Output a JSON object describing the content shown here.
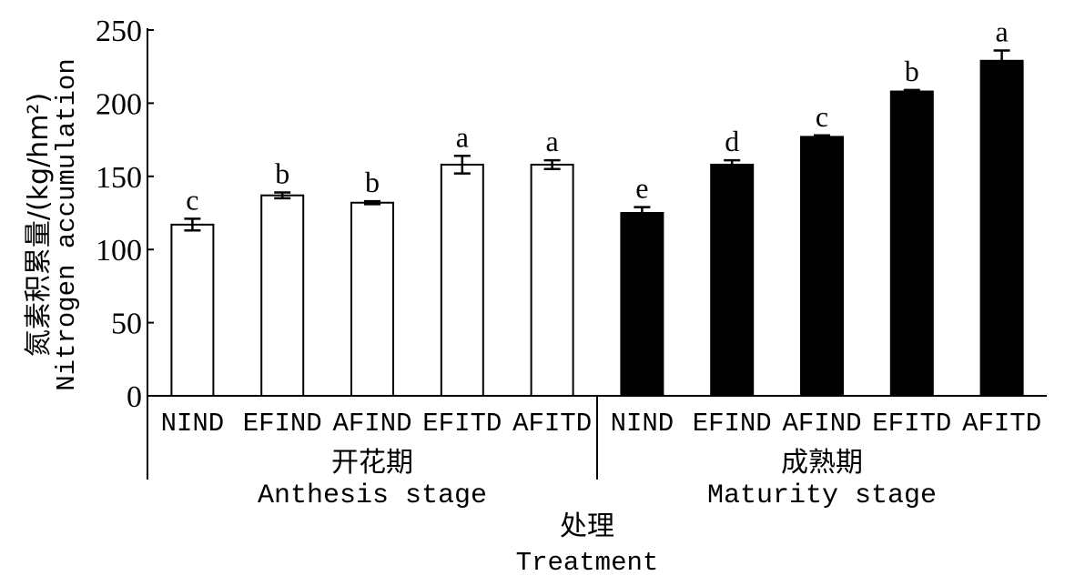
{
  "chart_data": {
    "type": "bar",
    "ylabel_cn": "氮素积累量/(kg/hm²)",
    "ylabel_en": "Nitrogen accumulation",
    "xlabel_cn": "处理",
    "xlabel_en": "Treatment",
    "ylim": [
      0,
      250
    ],
    "yticks": [
      "0",
      "50",
      "100",
      "150",
      "200",
      "250"
    ],
    "groups": [
      {
        "name_cn": "开花期",
        "name_en": "Anthesis stage",
        "fill": "#ffffff",
        "categories": [
          "NIND",
          "EFIND",
          "AFIND",
          "EFITD",
          "AFITD"
        ],
        "values": [
          117,
          137,
          132,
          158,
          158
        ],
        "errors": [
          4,
          2,
          1,
          6,
          3
        ],
        "labels": [
          "c",
          "b",
          "b",
          "a",
          "a"
        ]
      },
      {
        "name_cn": "成熟期",
        "name_en": "Maturity stage",
        "fill": "#000000",
        "categories": [
          "NIND",
          "EFIND",
          "AFIND",
          "EFITD",
          "AFITD"
        ],
        "values": [
          125,
          158,
          177,
          208,
          229
        ],
        "errors": [
          4,
          3,
          1,
          1,
          7
        ],
        "labels": [
          "e",
          "d",
          "c",
          "b",
          "a"
        ]
      }
    ]
  }
}
